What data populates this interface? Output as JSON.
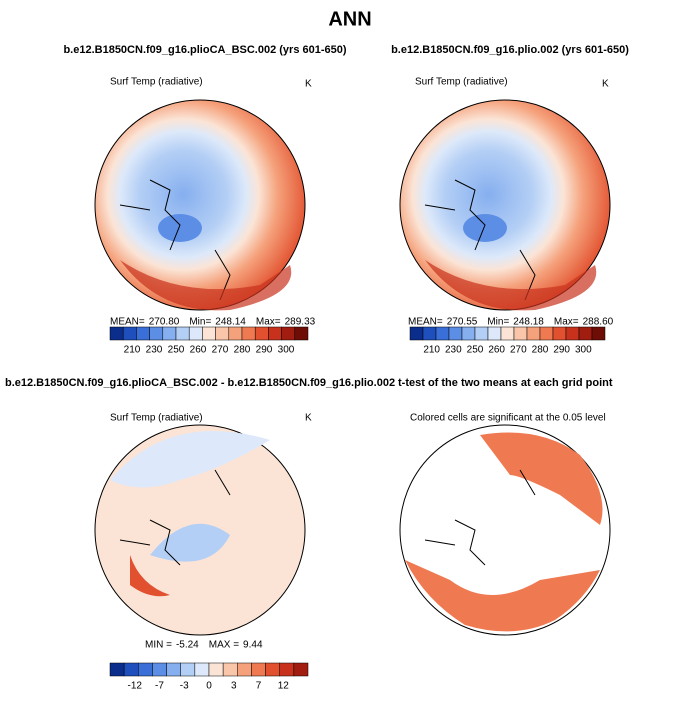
{
  "title": "ANN",
  "panels": [
    {
      "title": "b.e12.B1850CN.f09_g16.plioCA_BSC.002 (yrs 601-650)",
      "field": "Surf Temp (radiative)",
      "units": "K",
      "stats": [
        {
          "label": "MEAN=",
          "value": "270.80"
        },
        {
          "label": "Min=",
          "value": "248.14"
        },
        {
          "label": "Max=",
          "value": "289.33"
        }
      ],
      "colorbar": {
        "colors": [
          "#0b2d8c",
          "#1f4fbd",
          "#3b6fd8",
          "#5d8ee6",
          "#86afef",
          "#b4cff5",
          "#dde9fa",
          "#fbe4d6",
          "#f9c6a9",
          "#f5a27c",
          "#ef7a52",
          "#e2512f",
          "#c8321c",
          "#a01d10",
          "#6e0d06"
        ],
        "labels": [
          "210",
          "230",
          "250",
          "260",
          "270",
          "280",
          "290",
          "300"
        ]
      }
    },
    {
      "title": "b.e12.B1850CN.f09_g16.plio.002 (yrs 601-650)",
      "field": "Surf Temp (radiative)",
      "units": "K",
      "stats": [
        {
          "label": "MEAN=",
          "value": "270.55"
        },
        {
          "label": "Min=",
          "value": "248.18"
        },
        {
          "label": "Max=",
          "value": "288.60"
        }
      ],
      "colorbar": {
        "colors": [
          "#0b2d8c",
          "#1f4fbd",
          "#3b6fd8",
          "#5d8ee6",
          "#86afef",
          "#b4cff5",
          "#dde9fa",
          "#fbe4d6",
          "#f9c6a9",
          "#f5a27c",
          "#ef7a52",
          "#e2512f",
          "#c8321c",
          "#a01d10",
          "#6e0d06"
        ],
        "labels": [
          "210",
          "230",
          "250",
          "260",
          "270",
          "280",
          "290",
          "300"
        ]
      }
    },
    {
      "title": "b.e12.B1850CN.f09_g16.plioCA_BSC.002 - b.e12.B1850CN.f09_g16.plio.002",
      "field": "Surf Temp (radiative)",
      "units": "K",
      "stats": [
        {
          "label": "MIN =",
          "value": "-5.24"
        },
        {
          "label": "MAX =",
          "value": "9.44"
        }
      ],
      "colorbar": {
        "colors": [
          "#0b2d8c",
          "#1f4fbd",
          "#3b6fd8",
          "#5d8ee6",
          "#86afef",
          "#b4cff5",
          "#dde9fa",
          "#fbe4d6",
          "#f9c6a9",
          "#f5a27c",
          "#ef7a52",
          "#e2512f",
          "#c8321c",
          "#a01d10"
        ],
        "labels": [
          "-12",
          "-7",
          "-3",
          "0",
          "3",
          "7",
          "12"
        ]
      }
    },
    {
      "title": "t-test of the two means at each grid point",
      "field": "Colored cells are significant at the 0.05 level"
    }
  ]
}
